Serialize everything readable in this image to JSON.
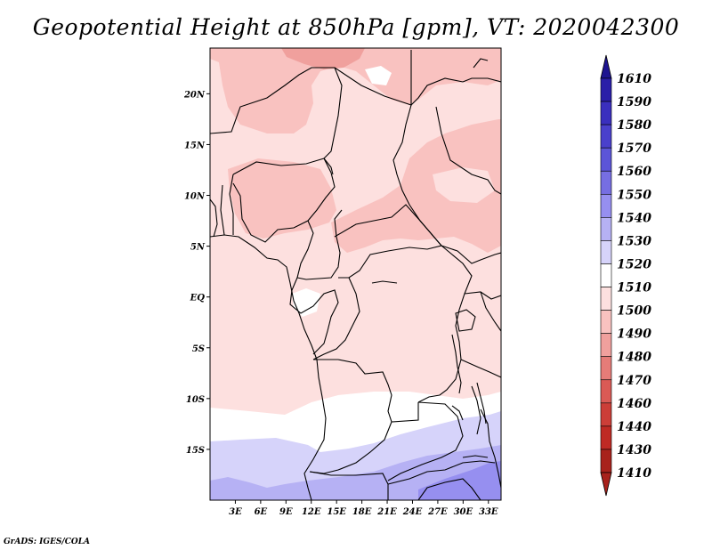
{
  "title": "Geopotential Height at 850hPa [gpm], VT: 2020042300",
  "credit": "GrADS: IGES/COLA",
  "map": {
    "lon_range": [
      0,
      34.5
    ],
    "lat_range": [
      -20,
      24.5
    ],
    "lat_ticks": [
      {
        "value": 20,
        "label": "20N"
      },
      {
        "value": 15,
        "label": "15N"
      },
      {
        "value": 10,
        "label": "10N"
      },
      {
        "value": 5,
        "label": "5N"
      },
      {
        "value": 0,
        "label": "EQ"
      },
      {
        "value": -5,
        "label": "5S"
      },
      {
        "value": -10,
        "label": "10S"
      },
      {
        "value": -15,
        "label": "15S"
      }
    ],
    "lon_ticks": [
      {
        "value": 3,
        "label": "3E"
      },
      {
        "value": 6,
        "label": "6E"
      },
      {
        "value": 9,
        "label": "9E"
      },
      {
        "value": 12,
        "label": "12E"
      },
      {
        "value": 15,
        "label": "15E"
      },
      {
        "value": 18,
        "label": "18E"
      },
      {
        "value": 21,
        "label": "21E"
      },
      {
        "value": 24,
        "label": "24E"
      },
      {
        "value": 27,
        "label": "27E"
      },
      {
        "value": 30,
        "label": "30E"
      },
      {
        "value": 33,
        "label": "33E"
      }
    ]
  },
  "colorbar": {
    "levels": [
      {
        "label": "1610",
        "color": "#1e1490"
      },
      {
        "label": "1590",
        "color": "#2a1ea8"
      },
      {
        "label": "1580",
        "color": "#3a2fbe"
      },
      {
        "label": "1570",
        "color": "#4a40cc"
      },
      {
        "label": "1560",
        "color": "#5c55d8"
      },
      {
        "label": "1550",
        "color": "#766ee2"
      },
      {
        "label": "1540",
        "color": "#968ff0"
      },
      {
        "label": "1530",
        "color": "#b6b1f4"
      },
      {
        "label": "1520",
        "color": "#d6d3fa"
      },
      {
        "label": "1510",
        "color": "#ffffff"
      },
      {
        "label": "1500",
        "color": "#fde0df"
      },
      {
        "label": "1490",
        "color": "#f9c2c0"
      },
      {
        "label": "1480",
        "color": "#f0a09d"
      },
      {
        "label": "1470",
        "color": "#e57c78"
      },
      {
        "label": "1460",
        "color": "#da5a55"
      },
      {
        "label": "1440",
        "color": "#cc3e38"
      },
      {
        "label": "1430",
        "color": "#bf2a24"
      },
      {
        "label": "1410",
        "color": "#a8221c"
      }
    ]
  }
}
